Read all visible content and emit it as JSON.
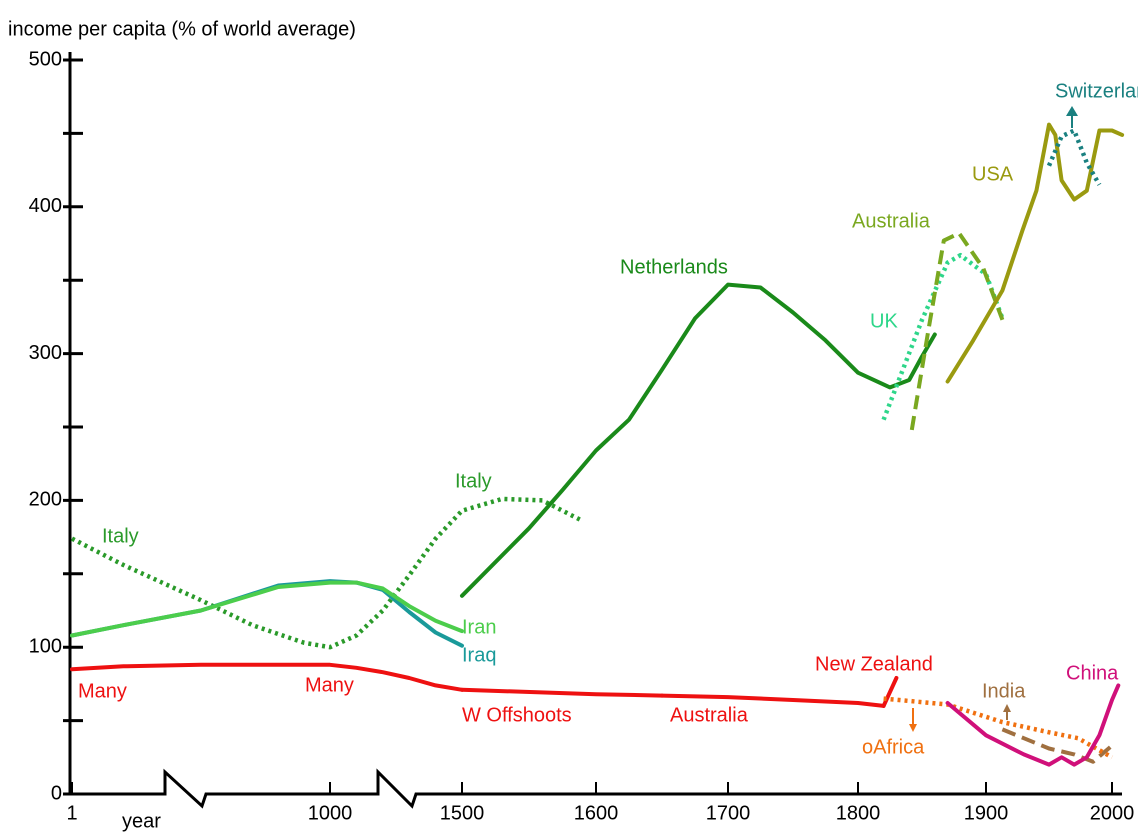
{
  "chart_data": {
    "type": "line",
    "y_axis_label": "income per capita (% of world average)",
    "x_axis_label": "year",
    "ylim": [
      0,
      500
    ],
    "yticks": [
      0,
      100,
      200,
      300,
      400,
      500
    ],
    "xlim": [
      1,
      2010
    ],
    "xticks": [
      1,
      1000,
      1500,
      1600,
      1700,
      1800,
      1900,
      2000
    ],
    "series": [
      {
        "name": "Italy",
        "color": "#2a9a2a",
        "style": "dotted",
        "x": [
          1,
          200,
          500,
          700,
          900,
          1000,
          1100,
          1200,
          1300,
          1400,
          1500,
          1530,
          1560,
          1590
        ],
        "values": [
          174,
          156,
          132,
          115,
          103,
          100,
          108,
          125,
          149,
          174,
          193,
          201,
          200,
          186
        ]
      },
      {
        "name": "Iraq",
        "color": "#1a9a9a",
        "style": "solid",
        "x": [
          1,
          200,
          500,
          800,
          1000,
          1100,
          1200,
          1300,
          1400,
          1500
        ],
        "values": [
          108,
          115,
          125,
          142,
          145,
          144,
          139,
          124,
          110,
          101
        ]
      },
      {
        "name": "Iran",
        "color": "#4ccd4c",
        "style": "solid",
        "x": [
          1,
          200,
          500,
          800,
          1000,
          1100,
          1200,
          1300,
          1400,
          1500
        ],
        "values": [
          108,
          115,
          125,
          141,
          144,
          144,
          140,
          128,
          118,
          111
        ]
      },
      {
        "name": "Many",
        "color": "#ee1111",
        "style": "solid",
        "x": [
          1,
          200,
          500,
          1000,
          1100,
          1200,
          1300,
          1400,
          1500
        ],
        "values": [
          85,
          87,
          88,
          88,
          86,
          83,
          79,
          74,
          71
        ]
      },
      {
        "name": "W Offshoots",
        "color": "#ee1111",
        "style": "solid",
        "x": [
          1500,
          1600,
          1650
        ],
        "values": [
          71,
          68,
          67
        ]
      },
      {
        "name": "Australia",
        "color": "#ee1111",
        "style": "solid",
        "x": [
          1650,
          1700,
          1750,
          1800,
          1820
        ],
        "values": [
          67,
          66,
          64,
          62,
          60
        ]
      },
      {
        "name": "New Zealand",
        "color": "#ee1111",
        "style": "solid",
        "x": [
          1820,
          1830
        ],
        "values": [
          60,
          79
        ]
      },
      {
        "name": "Netherlands",
        "color": "#1a8a1a",
        "style": "solid",
        "x": [
          1500,
          1550,
          1575,
          1600,
          1625,
          1650,
          1675,
          1700,
          1725,
          1750,
          1775,
          1800,
          1825,
          1840,
          1850,
          1860
        ],
        "values": [
          135,
          181,
          207,
          234,
          255,
          289,
          324,
          347,
          345,
          328,
          309,
          287,
          277,
          282,
          298,
          313
        ]
      },
      {
        "name": "UK",
        "color": "#2ed68a",
        "style": "dotted",
        "x": [
          1820,
          1850,
          1870,
          1880,
          1900,
          1913
        ],
        "values": [
          255,
          323,
          362,
          367,
          354,
          324
        ]
      },
      {
        "name": "Australia",
        "color": "#7aa820",
        "style": "dashed",
        "x": [
          1842,
          1855,
          1867,
          1879,
          1898,
          1913
        ],
        "values": [
          248,
          316,
          377,
          382,
          358,
          323
        ]
      },
      {
        "name": "USA",
        "color": "#9a9a10",
        "style": "solid",
        "x": [
          1870,
          1890,
          1913,
          1929,
          1940,
          1950,
          1955,
          1960,
          1970,
          1980,
          1990,
          2000,
          2008
        ],
        "values": [
          281,
          309,
          343,
          384,
          411,
          456,
          449,
          418,
          405,
          411,
          452,
          452,
          449
        ]
      },
      {
        "name": "Switzerland",
        "color": "#1a8080",
        "style": "dotted",
        "x": [
          1950,
          1960,
          1970,
          1980,
          1990
        ],
        "values": [
          428,
          448,
          452,
          430,
          415
        ]
      },
      {
        "name": "India",
        "color": "#a07040",
        "style": "dashed",
        "x": [
          1913,
          1930,
          1950,
          1970,
          1985,
          2000
        ],
        "values": [
          44,
          38,
          31,
          27,
          22,
          33
        ]
      },
      {
        "name": "oAfrica",
        "color": "#f07010",
        "style": "dotted",
        "x": [
          1820,
          1870,
          1913,
          1950,
          1973,
          2000
        ],
        "values": [
          65,
          61,
          49,
          42,
          38,
          25
        ]
      },
      {
        "name": "China",
        "color": "#d0107a",
        "style": "solid",
        "x": [
          1870,
          1900,
          1930,
          1950,
          1960,
          1970,
          1980,
          1990,
          2000,
          2005
        ],
        "values": [
          62,
          40,
          27,
          20,
          25,
          20,
          25,
          40,
          64,
          74
        ]
      }
    ]
  }
}
